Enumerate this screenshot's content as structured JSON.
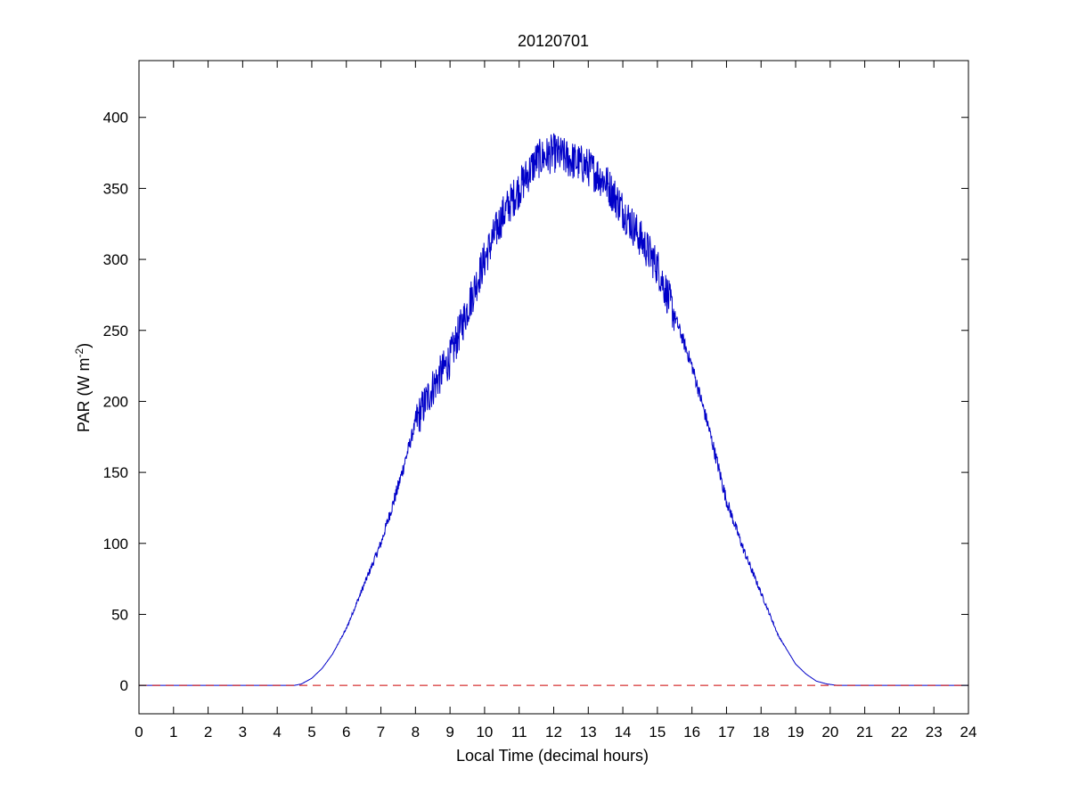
{
  "chart_data": {
    "type": "line",
    "title": "20120701",
    "xlabel": "Local Time (decimal hours)",
    "ylabel": {
      "text": "PAR (W m",
      "superscript": "-2",
      "closing": ")"
    },
    "xlim": [
      0,
      24
    ],
    "ylim": [
      -20,
      440
    ],
    "xticks": [
      "0",
      "1",
      "2",
      "3",
      "4",
      "5",
      "6",
      "7",
      "8",
      "9",
      "10",
      "11",
      "12",
      "13",
      "14",
      "15",
      "16",
      "17",
      "18",
      "19",
      "20",
      "21",
      "22",
      "23",
      "24"
    ],
    "yticks": [
      "0",
      "50",
      "100",
      "150",
      "200",
      "250",
      "300",
      "350",
      "400"
    ],
    "grid": false,
    "series": [
      {
        "color": "#0000c8",
        "style": "solid",
        "x": [
          0,
          4.5,
          4.7,
          5.0,
          5.3,
          5.6,
          6.0,
          6.5,
          7.0,
          7.5,
          8.0,
          8.5,
          9.0,
          9.5,
          10.0,
          10.5,
          11.0,
          11.5,
          12.0,
          12.5,
          13.0,
          13.5,
          14.0,
          14.5,
          15.0,
          15.5,
          16.0,
          16.5,
          17.0,
          17.5,
          18.0,
          18.5,
          19.0,
          19.3,
          19.6,
          19.9,
          20.2,
          24
        ],
        "y": [
          0,
          0,
          1,
          5,
          12,
          22,
          40,
          70,
          100,
          140,
          185,
          210,
          230,
          265,
          300,
          330,
          350,
          370,
          375,
          370,
          365,
          355,
          335,
          315,
          295,
          260,
          225,
          180,
          130,
          95,
          65,
          35,
          15,
          8,
          3,
          1,
          0,
          0
        ]
      },
      {
        "color": "#cc0000",
        "style": "dashed",
        "x": [
          0,
          24
        ],
        "y": [
          0,
          0
        ]
      }
    ]
  }
}
